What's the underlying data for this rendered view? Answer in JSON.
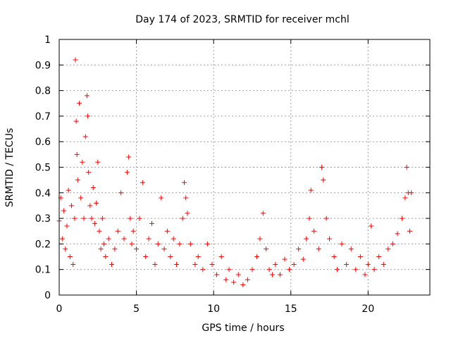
{
  "chart_data": {
    "type": "scatter",
    "title": "Day 174 of 2023, SRMTID for receiver mchl",
    "xlabel": "GPS time / hours",
    "ylabel": "SRMTID / TECUs",
    "xlim": [
      0,
      24
    ],
    "ylim": [
      0,
      1
    ],
    "xticks": [
      0,
      5,
      10,
      15,
      20
    ],
    "xtick_labels": [
      "0",
      "5",
      "10",
      "15",
      "20"
    ],
    "yticks": [
      0,
      0.1,
      0.2,
      0.3,
      0.4,
      0.5,
      0.6,
      0.7,
      0.8,
      0.9,
      1
    ],
    "ytick_labels": [
      "0",
      "0.1",
      "0.2",
      "0.3",
      "0.4",
      "0.5",
      "0.6",
      "0.7",
      "0.8",
      "0.9",
      "1"
    ],
    "grid": true,
    "marker": "+",
    "color": "#ff0000",
    "series": [
      {
        "name": "SRMTID",
        "x": [
          0.0,
          0.1,
          0.2,
          0.3,
          0.4,
          0.5,
          0.6,
          0.7,
          0.8,
          0.9,
          1.0,
          1.05,
          1.1,
          1.15,
          1.2,
          1.3,
          1.4,
          1.5,
          1.6,
          1.7,
          1.8,
          1.85,
          1.9,
          2.0,
          2.1,
          2.2,
          2.3,
          2.4,
          2.5,
          2.6,
          2.7,
          2.8,
          2.9,
          3.0,
          3.2,
          3.4,
          3.6,
          3.8,
          4.0,
          4.2,
          4.4,
          4.5,
          4.6,
          4.7,
          4.8,
          5.0,
          5.2,
          5.4,
          5.6,
          5.8,
          6.0,
          6.2,
          6.4,
          6.6,
          6.8,
          7.0,
          7.2,
          7.4,
          7.6,
          7.8,
          8.0,
          8.1,
          8.2,
          8.3,
          8.5,
          8.8,
          9.0,
          9.3,
          9.6,
          9.9,
          10.2,
          10.5,
          10.8,
          11.0,
          11.3,
          11.6,
          11.9,
          12.2,
          12.5,
          12.8,
          13.0,
          13.2,
          13.4,
          13.6,
          13.8,
          14.0,
          14.3,
          14.6,
          14.9,
          15.2,
          15.5,
          15.8,
          16.0,
          16.2,
          16.3,
          16.5,
          16.8,
          17.0,
          17.1,
          17.3,
          17.5,
          17.8,
          18.0,
          18.3,
          18.6,
          18.9,
          19.2,
          19.5,
          19.8,
          20.0,
          20.2,
          20.4,
          20.7,
          21.0,
          21.3,
          21.6,
          21.9,
          22.2,
          22.4,
          22.5,
          22.6,
          22.7,
          22.8
        ],
        "y": [
          0.29,
          0.38,
          0.22,
          0.33,
          0.18,
          0.27,
          0.41,
          0.15,
          0.35,
          0.12,
          0.3,
          0.92,
          0.68,
          0.55,
          0.45,
          0.75,
          0.38,
          0.52,
          0.3,
          0.62,
          0.78,
          0.7,
          0.48,
          0.35,
          0.3,
          0.42,
          0.28,
          0.36,
          0.52,
          0.25,
          0.18,
          0.3,
          0.2,
          0.15,
          0.22,
          0.12,
          0.18,
          0.25,
          0.4,
          0.22,
          0.48,
          0.54,
          0.3,
          0.2,
          0.25,
          0.18,
          0.3,
          0.44,
          0.15,
          0.22,
          0.28,
          0.12,
          0.2,
          0.38,
          0.18,
          0.25,
          0.15,
          0.22,
          0.12,
          0.2,
          0.3,
          0.44,
          0.38,
          0.32,
          0.2,
          0.12,
          0.15,
          0.1,
          0.2,
          0.12,
          0.08,
          0.15,
          0.06,
          0.1,
          0.05,
          0.08,
          0.04,
          0.06,
          0.1,
          0.15,
          0.22,
          0.32,
          0.18,
          0.1,
          0.08,
          0.12,
          0.08,
          0.14,
          0.1,
          0.12,
          0.18,
          0.14,
          0.22,
          0.3,
          0.41,
          0.25,
          0.18,
          0.5,
          0.45,
          0.3,
          0.22,
          0.15,
          0.1,
          0.2,
          0.12,
          0.18,
          0.1,
          0.15,
          0.08,
          0.12,
          0.27,
          0.1,
          0.15,
          0.12,
          0.18,
          0.2,
          0.24,
          0.3,
          0.38,
          0.5,
          0.4,
          0.25,
          0.4
        ]
      }
    ]
  }
}
